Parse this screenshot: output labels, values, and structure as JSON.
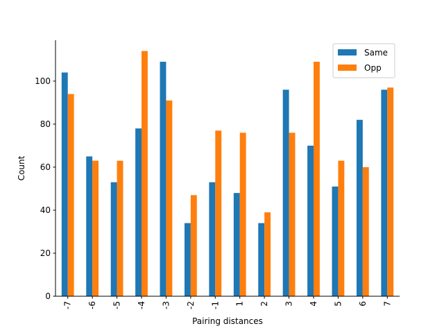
{
  "chart_data": {
    "type": "bar",
    "categories": [
      "-7",
      "-6",
      "-5",
      "-4",
      "-3",
      "-2",
      "-1",
      "1",
      "2",
      "3",
      "4",
      "5",
      "6",
      "7"
    ],
    "series": [
      {
        "name": "Same",
        "color": "#1f77b4",
        "values": [
          104,
          65,
          53,
          78,
          109,
          34,
          53,
          48,
          34,
          96,
          70,
          51,
          82,
          96
        ]
      },
      {
        "name": "Opp",
        "color": "#ff7f0e",
        "values": [
          94,
          63,
          63,
          114,
          91,
          47,
          77,
          76,
          39,
          76,
          109,
          63,
          60,
          97
        ]
      }
    ],
    "xlabel": "Pairing distances",
    "ylabel": "Count",
    "ylim": [
      0,
      119
    ],
    "yticks": [
      0,
      20,
      40,
      60,
      80,
      100
    ],
    "legend_position": "top-right",
    "grid": false
  }
}
